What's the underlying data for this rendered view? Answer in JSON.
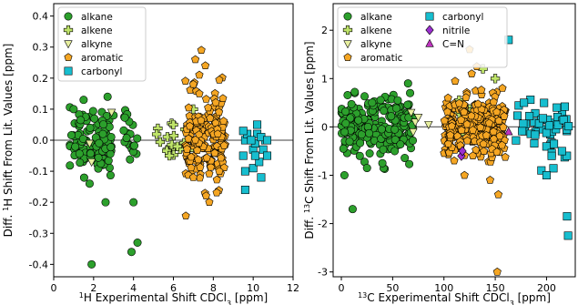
{
  "chart_data": [
    {
      "type": "scatter",
      "xlabel_html": [
        "1",
        "H Experimental Shift CDCl",
        "3",
        " [ppm]"
      ],
      "ylabel_html": [
        "Diff. ",
        "1",
        "H Shift From Lit. Values [ppm]"
      ],
      "xlim": [
        0,
        12
      ],
      "ylim": [
        -0.44,
        0.44
      ],
      "xticks": [
        "0",
        "2",
        "4",
        "6",
        "8",
        "10",
        "12"
      ],
      "yticks": [
        "-0.4",
        "-0.3",
        "-0.2",
        "-0.1",
        "0.0",
        "0.1",
        "0.2",
        "0.3",
        "0.4"
      ],
      "legend_loc": "upper-left",
      "series": [
        {
          "name": "alkane",
          "color": "#2ca02c",
          "marker": "circle",
          "clusters": [
            [
              0.8,
              2.9,
              0.05,
              110
            ],
            [
              3.5,
              4.2,
              0.05,
              20
            ]
          ],
          "points": [
            [
              1.9,
              -0.4
            ],
            [
              3.9,
              -0.36
            ],
            [
              4.2,
              -0.33
            ],
            [
              4.0,
              -0.2
            ],
            [
              2.6,
              -0.2
            ],
            [
              1.5,
              0.13
            ],
            [
              2.7,
              0.14
            ],
            [
              1.0,
              0.1
            ],
            [
              3.0,
              0.08
            ],
            [
              1.8,
              -0.14
            ]
          ]
        },
        {
          "name": "alkene",
          "color": "#bfe46a",
          "marker": "plus",
          "clusters": [
            [
              5.1,
              7.0,
              0.025,
              18
            ]
          ],
          "points": [
            [
              6.0,
              0.05
            ],
            [
              7.0,
              0.1
            ],
            [
              5.8,
              -0.05
            ],
            [
              6.2,
              -0.02
            ]
          ]
        },
        {
          "name": "alkyne",
          "color": "#e8f0a0",
          "marker": "triangle-down",
          "clusters": [],
          "points": [
            [
              2.9,
              0.09
            ],
            [
              1.9,
              -0.07
            ],
            [
              1.8,
              -0.01
            ]
          ]
        },
        {
          "name": "aromatic",
          "color": "#f5a623",
          "marker": "pentagon",
          "clusters": [
            [
              6.6,
              8.6,
              0.07,
              170
            ]
          ],
          "points": [
            [
              7.4,
              0.29
            ],
            [
              7.1,
              0.26
            ],
            [
              7.6,
              0.24
            ],
            [
              7.3,
              0.21
            ],
            [
              7.0,
              0.18
            ],
            [
              7.8,
              -0.2
            ],
            [
              7.0,
              -0.12
            ],
            [
              8.3,
              -0.1
            ],
            [
              7.3,
              0.15
            ]
          ]
        },
        {
          "name": "carbonyl",
          "color": "#17becf",
          "marker": "square",
          "clusters": [],
          "points": [
            [
              9.6,
              -0.16
            ],
            [
              9.6,
              -0.1
            ],
            [
              9.5,
              -0.05
            ],
            [
              9.6,
              0.0
            ],
            [
              9.7,
              0.02
            ],
            [
              9.5,
              0.03
            ],
            [
              10.0,
              -0.03
            ],
            [
              10.0,
              -0.09
            ],
            [
              10.1,
              -0.01
            ],
            [
              10.2,
              0.05
            ],
            [
              10.2,
              0.02
            ],
            [
              10.3,
              -0.07
            ],
            [
              10.4,
              -0.12
            ],
            [
              10.5,
              -0.03
            ],
            [
              10.6,
              0.0
            ],
            [
              10.4,
              0.01
            ],
            [
              10.7,
              -0.05
            ],
            [
              10.7,
              0.0
            ],
            [
              10.1,
              -0.05
            ],
            [
              9.9,
              0.0
            ]
          ]
        }
      ]
    },
    {
      "type": "scatter",
      "xlabel_html": [
        "13",
        "C Experimental Shift CDCl",
        "3",
        " [ppm]"
      ],
      "ylabel_html": [
        "Diff. ",
        "13",
        "C Shift From Lit. Values [ppm]"
      ],
      "xlim": [
        -8,
        228
      ],
      "ylim": [
        -3.1,
        2.55
      ],
      "xticks": [
        "0",
        "50",
        "100",
        "150",
        "200"
      ],
      "yticks": [
        "-3",
        "-2",
        "-1",
        "0",
        "1",
        "2"
      ],
      "legend_loc": "upper-left",
      "series": [
        {
          "name": "alkane",
          "color": "#2ca02c",
          "marker": "circle",
          "clusters": [
            [
              0,
              70,
              0.3,
              230
            ]
          ],
          "points": [
            [
              3,
              -1.0
            ],
            [
              11,
              -1.7
            ],
            [
              25,
              -0.85
            ],
            [
              40,
              -0.75
            ],
            [
              52,
              -0.5
            ],
            [
              65,
              0.9
            ],
            [
              2,
              -0.45
            ],
            [
              18,
              -0.6
            ],
            [
              30,
              0.5
            ],
            [
              55,
              0.55
            ],
            [
              67,
              0.7
            ],
            [
              8,
              -0.3
            ]
          ]
        },
        {
          "name": "alkene",
          "color": "#bfe46a",
          "marker": "plus",
          "clusters": [
            [
              110,
              155,
              0.18,
              22
            ]
          ],
          "points": [
            [
              138,
              1.2
            ],
            [
              150,
              1.0
            ],
            [
              125,
              0.3
            ]
          ]
        },
        {
          "name": "alkyne",
          "color": "#e8f0a0",
          "marker": "triangle-down",
          "clusters": [],
          "points": [
            [
              68,
              0.3
            ],
            [
              72,
              0.1
            ],
            [
              70,
              -0.1
            ],
            [
              75,
              0.2
            ],
            [
              85,
              0.05
            ]
          ]
        },
        {
          "name": "aromatic",
          "color": "#f5a623",
          "marker": "pentagon",
          "clusters": [
            [
              100,
              160,
              0.3,
              300
            ]
          ],
          "points": [
            [
              152,
              -3.0
            ],
            [
              153,
              -1.4
            ],
            [
              120,
              -1.0
            ],
            [
              125,
              1.6
            ],
            [
              132,
              1.25
            ],
            [
              145,
              -1.1
            ],
            [
              110,
              -0.7
            ],
            [
              127,
              1.1
            ],
            [
              157,
              0.8
            ],
            [
              104,
              0.6
            ]
          ]
        },
        {
          "name": "carbonyl",
          "color": "#17becf",
          "marker": "square",
          "clusters": [
            [
              170,
              222,
              0.3,
              48
            ]
          ],
          "points": [
            [
              163,
              1.8
            ],
            [
              220,
              -1.85
            ],
            [
              221,
              -2.25
            ],
            [
              195,
              -0.9
            ],
            [
              200,
              -1.0
            ],
            [
              178,
              0.5
            ],
            [
              215,
              -0.5
            ],
            [
              210,
              0.4
            ],
            [
              205,
              -0.6
            ]
          ]
        },
        {
          "name": "nitrile",
          "color": "#9b30cf",
          "marker": "diamond",
          "clusters": [],
          "points": [
            [
              117,
              -0.6
            ],
            [
              118,
              -0.5
            ]
          ]
        },
        {
          "name": "C=N",
          "color": "#c034c0",
          "marker": "triangle-up",
          "clusters": [],
          "points": [
            [
              163,
              -0.1
            ]
          ]
        }
      ]
    }
  ]
}
